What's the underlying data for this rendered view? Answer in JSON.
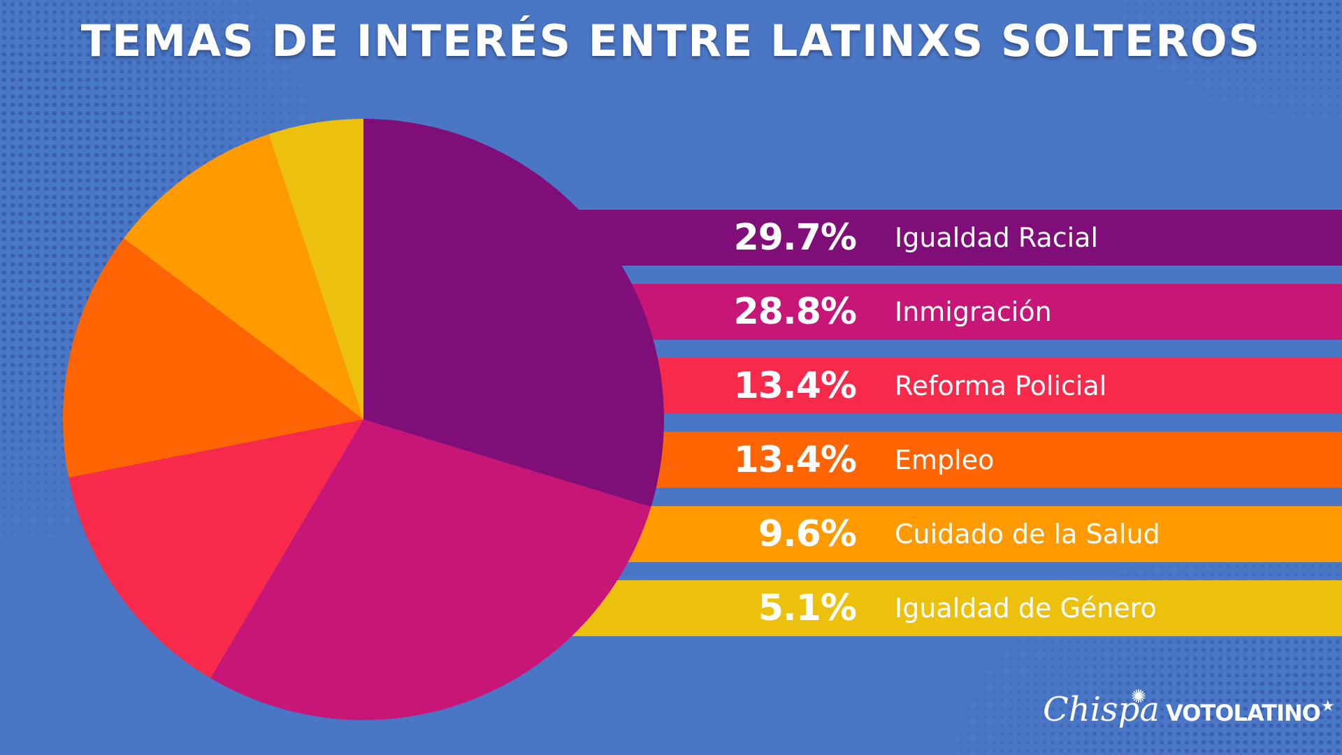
{
  "title": "TEMAS DE INTERÉS ENTRE LATINXS SOLTEROS",
  "chart_data": {
    "type": "pie",
    "title": "TEMAS DE INTERÉS ENTRE LATINXS SOLTEROS",
    "unit": "%",
    "slices": [
      {
        "label": "Igualdad Racial",
        "value": 29.7,
        "display": "29.7%",
        "color": "#800e78"
      },
      {
        "label": "Inmigración",
        "value": 28.8,
        "display": "28.8%",
        "color": "#c71677"
      },
      {
        "label": "Reforma Policial",
        "value": 13.4,
        "display": "13.4%",
        "color": "#f72a4c"
      },
      {
        "label": "Empleo",
        "value": 13.4,
        "display": "13.4%",
        "color": "#ff6402"
      },
      {
        "label": "Cuidado de la Salud",
        "value": 9.6,
        "display": "9.6%",
        "color": "#ff9a00"
      },
      {
        "label": "Igualdad de Género",
        "value": 5.1,
        "display": "5.1%",
        "color": "#ecc10d"
      }
    ]
  },
  "logos": {
    "chispa": "Chispa",
    "votolatino": "VOTOLATINO"
  },
  "colors": {
    "background": "#4a76c6",
    "text": "#ffffff"
  }
}
